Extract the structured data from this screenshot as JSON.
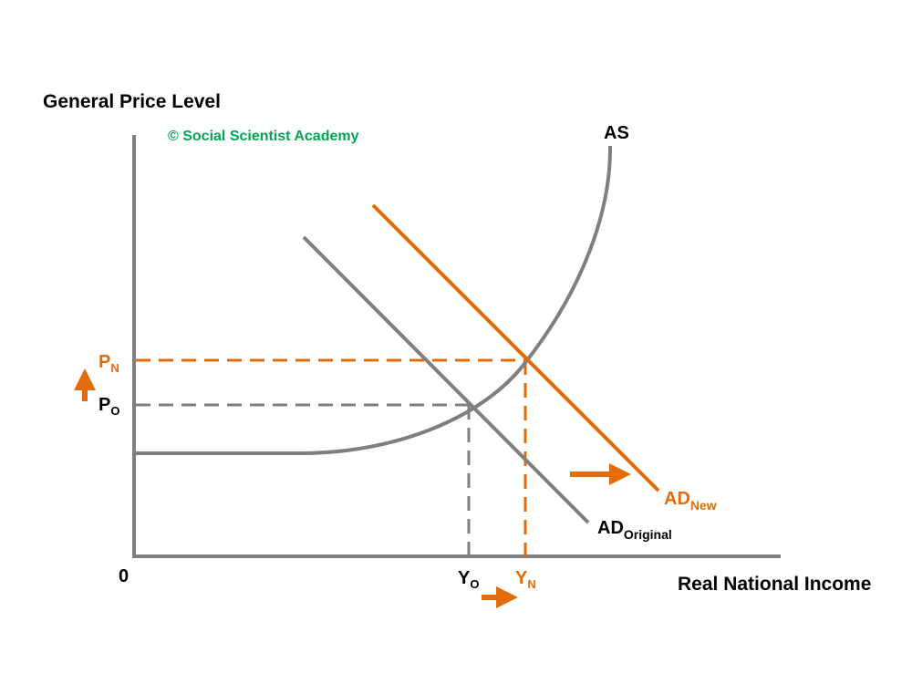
{
  "diagram": {
    "y_axis_label": "General Price Level",
    "x_axis_label": "Real National Income",
    "origin_label": "0",
    "copyright": "© Social Scientist Academy",
    "curves": {
      "as": "AS",
      "ad_original_main": "AD",
      "ad_original_sub": "Original",
      "ad_new_main": "AD",
      "ad_new_sub": "New"
    },
    "price_levels": {
      "p_new_main": "P",
      "p_new_sub": "N",
      "p_old_main": "P",
      "p_old_sub": "O"
    },
    "income_levels": {
      "y_old_main": "Y",
      "y_old_sub": "O",
      "y_new_main": "Y",
      "y_new_sub": "N"
    },
    "colors": {
      "original": "#7f7f7f",
      "new": "#e36c0a",
      "copyright": "#00a651",
      "text": "#000000"
    },
    "shift_arrows": [
      "arrow-up-icon",
      "arrow-right-icon"
    ]
  }
}
